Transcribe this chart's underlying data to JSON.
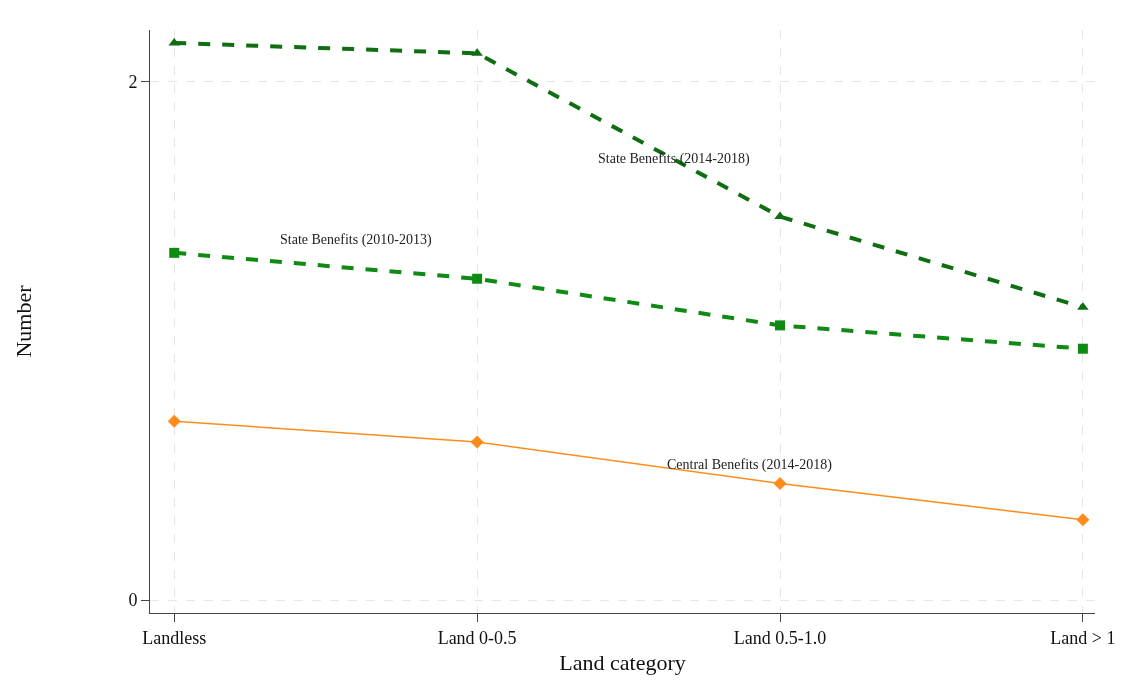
{
  "chart_data": {
    "type": "line",
    "xlabel": "Land category",
    "ylabel": "Number",
    "categories": [
      "Landless",
      "Land 0-0.5",
      "Land 0.5-1.0",
      "Land > 1"
    ],
    "series": [
      {
        "name": "State Benefits (2014-2018)",
        "color": "#0f6e12",
        "values": [
          2.15,
          2.11,
          1.48,
          1.13
        ],
        "marker": "triangle",
        "line_style": "dashed"
      },
      {
        "name": "State Benefits (2010-2013)",
        "color": "#0f8a12",
        "values": [
          1.34,
          1.24,
          1.06,
          0.97
        ],
        "marker": "square",
        "line_style": "dashed"
      },
      {
        "name": "Central Benefits (2014-2018)",
        "color": "#ff8c1a",
        "values": [
          0.69,
          0.61,
          0.45,
          0.31
        ],
        "marker": "diamond",
        "line_style": "solid"
      }
    ],
    "ylim": [
      -0.05,
      2.2
    ],
    "yticks": [
      0,
      2
    ],
    "grid": true,
    "legend": false
  }
}
